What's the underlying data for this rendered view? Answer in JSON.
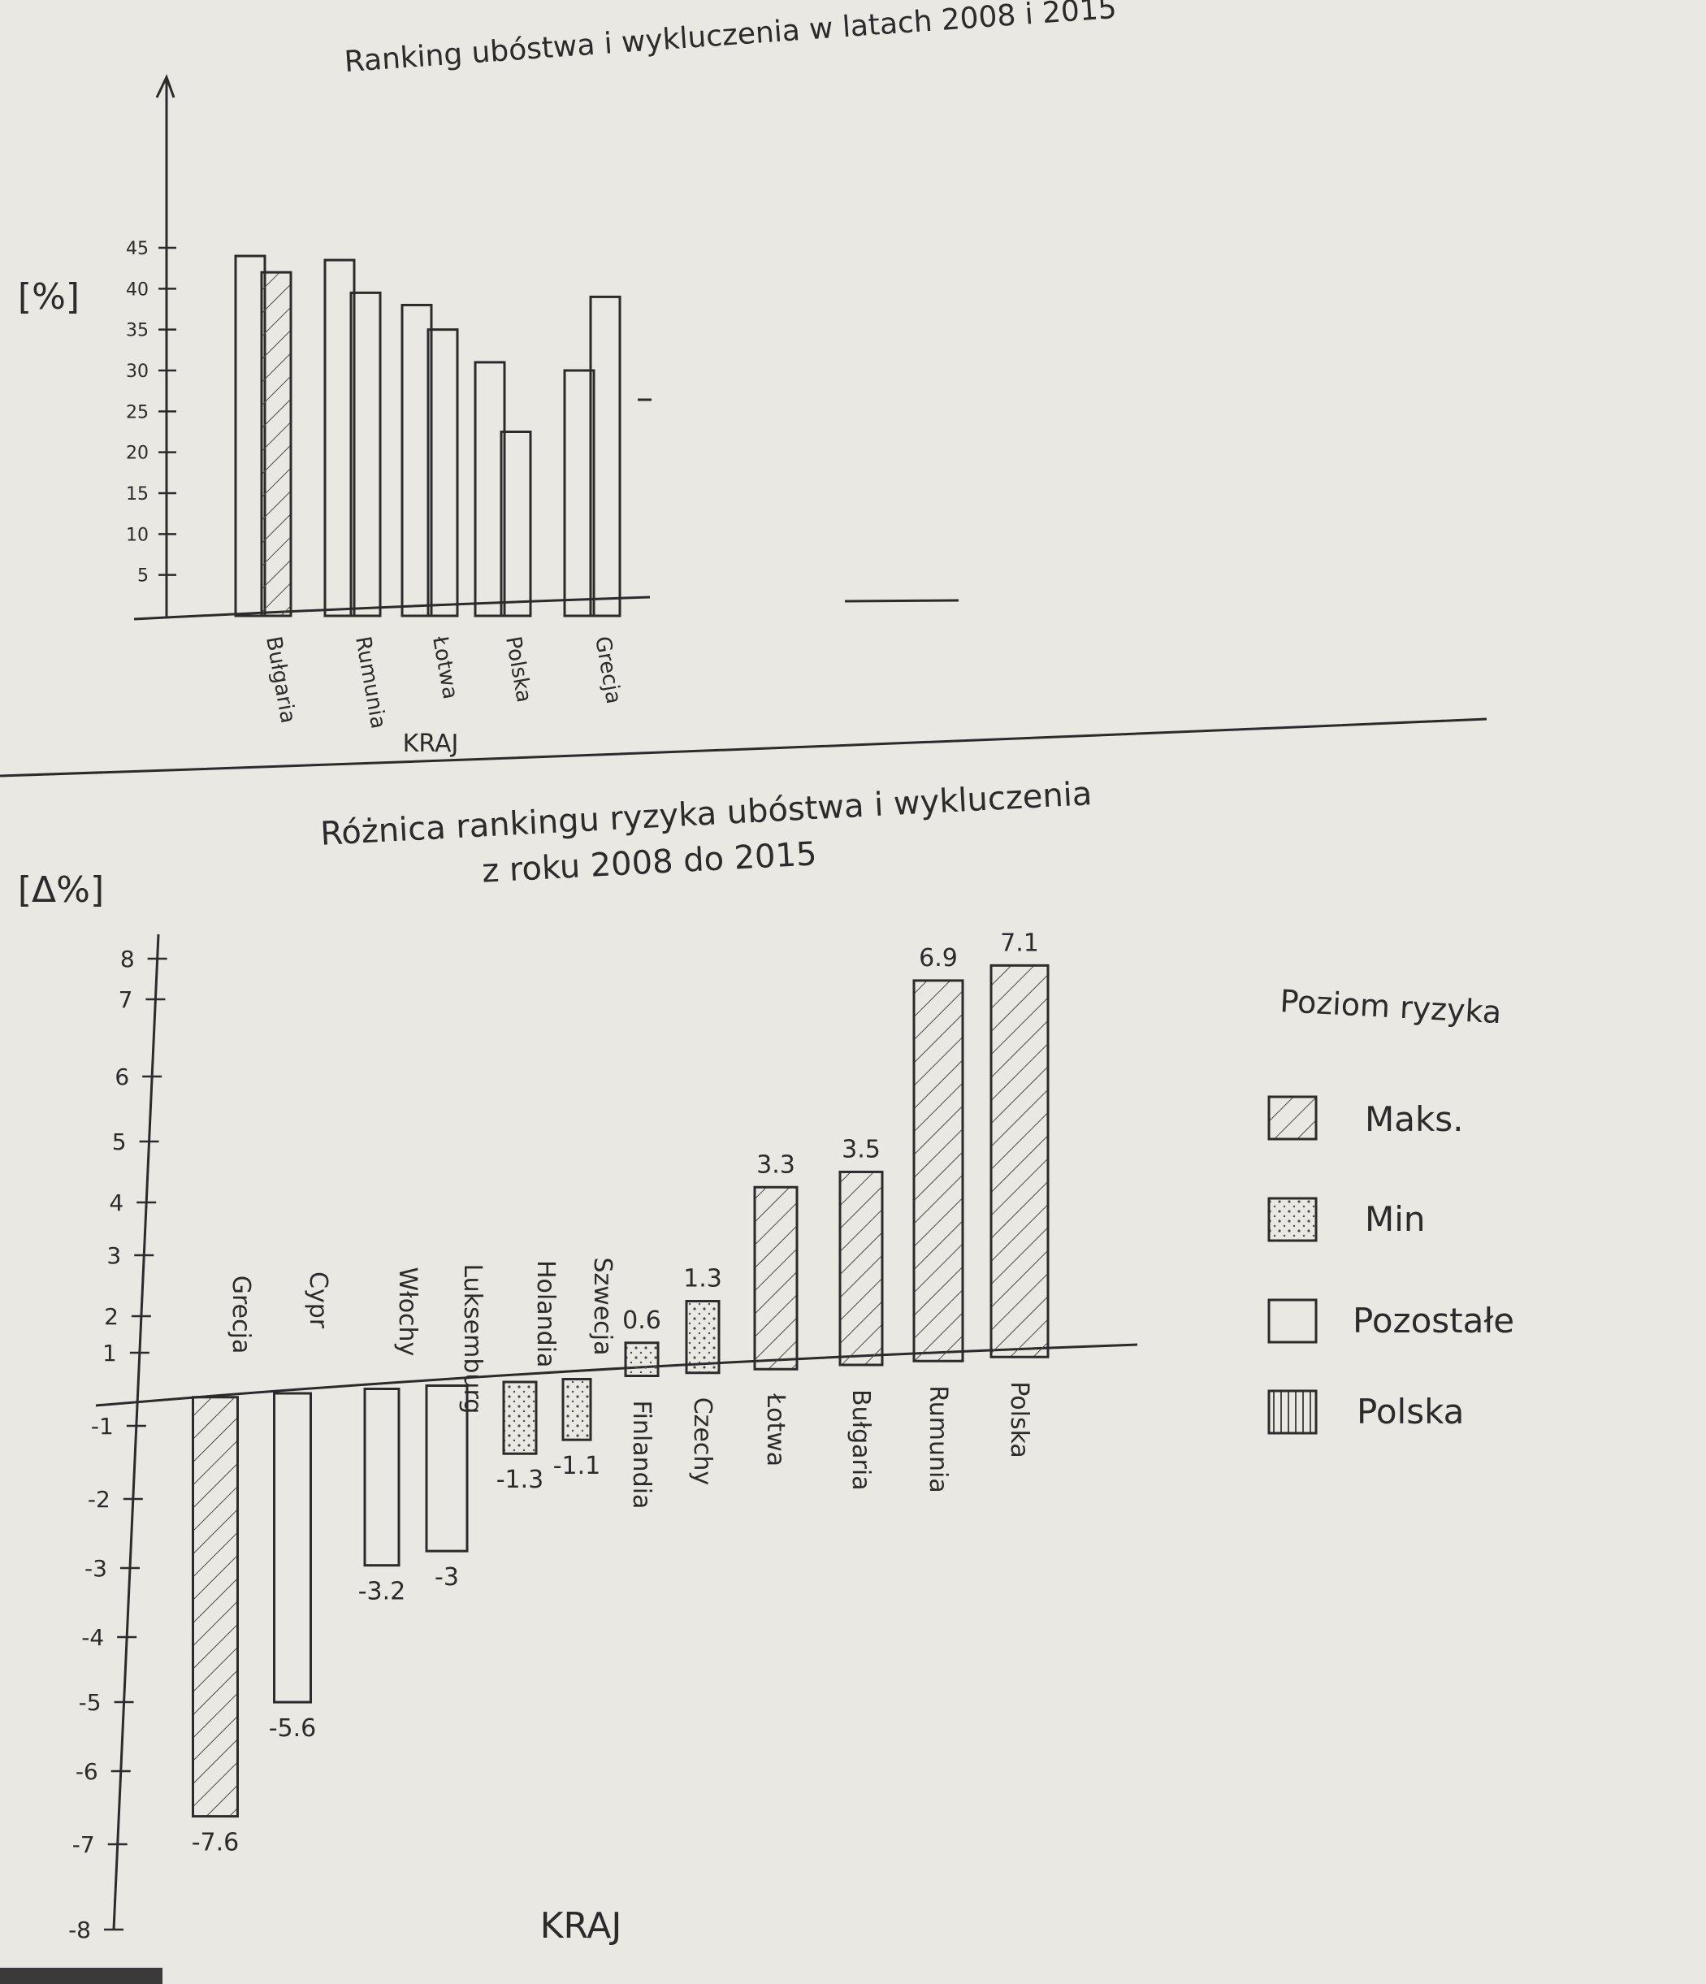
{
  "colors": {
    "paper": "#e9e8e2",
    "ink": "#2b2b2b",
    "pencil": "#8a8a85"
  },
  "chart_data": [
    {
      "type": "bar",
      "title": "Ranking ubóstwa i wykluczenia w latach 2008 i 2015",
      "ylabel": "[%]",
      "xlabel": "KRAJ",
      "ylim": [
        0,
        45
      ],
      "yticks": [
        5,
        10,
        15,
        20,
        25,
        30,
        35,
        40,
        45
      ],
      "categories": [
        "Bułgaria",
        "Rumunia",
        "Łotwa",
        "Polska",
        "Grecja"
      ],
      "series": [
        {
          "values": [
            44,
            43.5,
            38,
            31,
            30
          ]
        },
        {
          "values": [
            42,
            39.5,
            35,
            22.5,
            39
          ]
        }
      ],
      "grid": false
    },
    {
      "type": "bar",
      "title": "Różnica rankingu ryzyka ubóstwa i wykluczenia z roku 2008 do 2015",
      "title_lines": [
        "Różnica rankingu ryzyka ubóstwa i wykluczenia",
        "z roku 2008 do 2015"
      ],
      "ylabel": "[Δ%]",
      "xlabel": "KRAJ",
      "ylim": [
        -8,
        8
      ],
      "ytick_labels": [
        "8",
        "7",
        "6",
        "5",
        "4",
        "3",
        "2",
        "1",
        "-1",
        "-2",
        "-3",
        "-4",
        "-5",
        "-6",
        "-7",
        "-8"
      ],
      "categories": [
        "Grecja",
        "Cypr",
        "Włochy",
        "Luksemburg",
        "Holandia",
        "Szwecja",
        "Finlandia",
        "Czechy",
        "Łotwa",
        "Bułgaria",
        "Rumunia",
        "Polska"
      ],
      "values": [
        -7.6,
        -5.6,
        -3.2,
        -3,
        -1.3,
        -1.1,
        0.6,
        1.3,
        3.3,
        3.5,
        6.9,
        7.1
      ],
      "value_labels": [
        "-7.6",
        "-5.6",
        "-3.2",
        "-3",
        "-1.3",
        "-1.1",
        "0.6",
        "1.3",
        "3.3",
        "3.5",
        "6.9",
        "7.1"
      ],
      "level": [
        "maks",
        "pozostale",
        "pozostale",
        "pozostale",
        "min",
        "min",
        "min",
        "min",
        "maks",
        "maks",
        "maks",
        "maks"
      ],
      "legend": {
        "title": "Poziom ryzyka",
        "placement": "right",
        "items": [
          {
            "key": "maks",
            "label": "Maks."
          },
          {
            "key": "min",
            "label": "Min"
          },
          {
            "key": "pozostale",
            "label": "Pozostałe"
          },
          {
            "key": "polska",
            "label": "Polska"
          }
        ]
      },
      "grid": false
    }
  ]
}
